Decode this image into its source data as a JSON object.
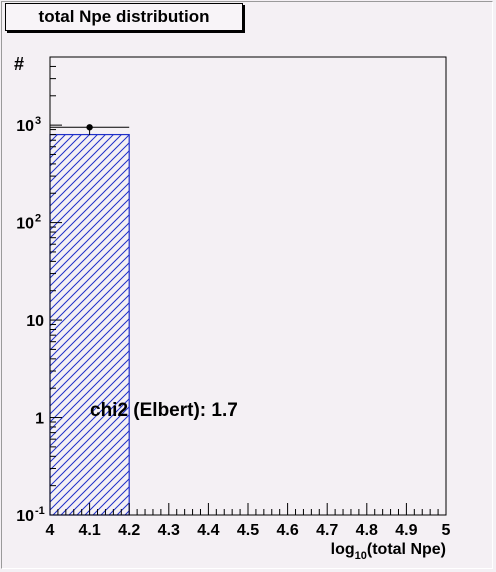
{
  "title": "total Npe distribution",
  "annotation": "chi2 (Elbert): 1.7",
  "chart_data": {
    "type": "bar",
    "title": "total Npe distribution",
    "xlabel": "log10(total Npe)",
    "xlabel_main": "log",
    "xlabel_sub": "10",
    "xlabel_rest": "(total Npe)",
    "ylabel": "#",
    "xlim": [
      4,
      5
    ],
    "ylim": [
      0.1,
      5000
    ],
    "y_scale": "log",
    "grid": false,
    "x_ticks": [
      "4",
      "4.1",
      "4.2",
      "4.3",
      "4.4",
      "4.5",
      "4.6",
      "4.7",
      "4.8",
      "4.9",
      "5"
    ],
    "y_ticks": [
      {
        "value": 0.1,
        "base": "10",
        "exp": "-1"
      },
      {
        "value": 1,
        "base": "1",
        "exp": ""
      },
      {
        "value": 10,
        "base": "10",
        "exp": ""
      },
      {
        "value": 100,
        "base": "10",
        "exp": "2"
      },
      {
        "value": 1000,
        "base": "10",
        "exp": "3"
      }
    ],
    "series": [
      {
        "style": "hatched-histogram",
        "color": "#1f2fc8",
        "bins": [
          {
            "x0": 4.0,
            "x1": 4.2,
            "value": 800
          },
          {
            "x0": 4.2,
            "x1": 4.3,
            "value": 0.1
          },
          {
            "x0": 4.3,
            "x1": 4.4,
            "value": 0.1
          },
          {
            "x0": 4.4,
            "x1": 4.5,
            "value": 0.1
          },
          {
            "x0": 4.5,
            "x1": 4.6,
            "value": 0.1
          },
          {
            "x0": 4.6,
            "x1": 4.7,
            "value": 0.1
          },
          {
            "x0": 4.7,
            "x1": 4.8,
            "value": 0.1
          },
          {
            "x0": 4.8,
            "x1": 4.9,
            "value": 0.1
          },
          {
            "x0": 4.9,
            "x1": 5.0,
            "value": 0.1
          }
        ]
      },
      {
        "style": "points-with-errors",
        "color": "#000000",
        "points": [
          {
            "x": 4.1,
            "x0": 4.0,
            "x1": 4.2,
            "y": 950,
            "ylow": 790,
            "yhigh": 1000
          }
        ]
      }
    ]
  }
}
